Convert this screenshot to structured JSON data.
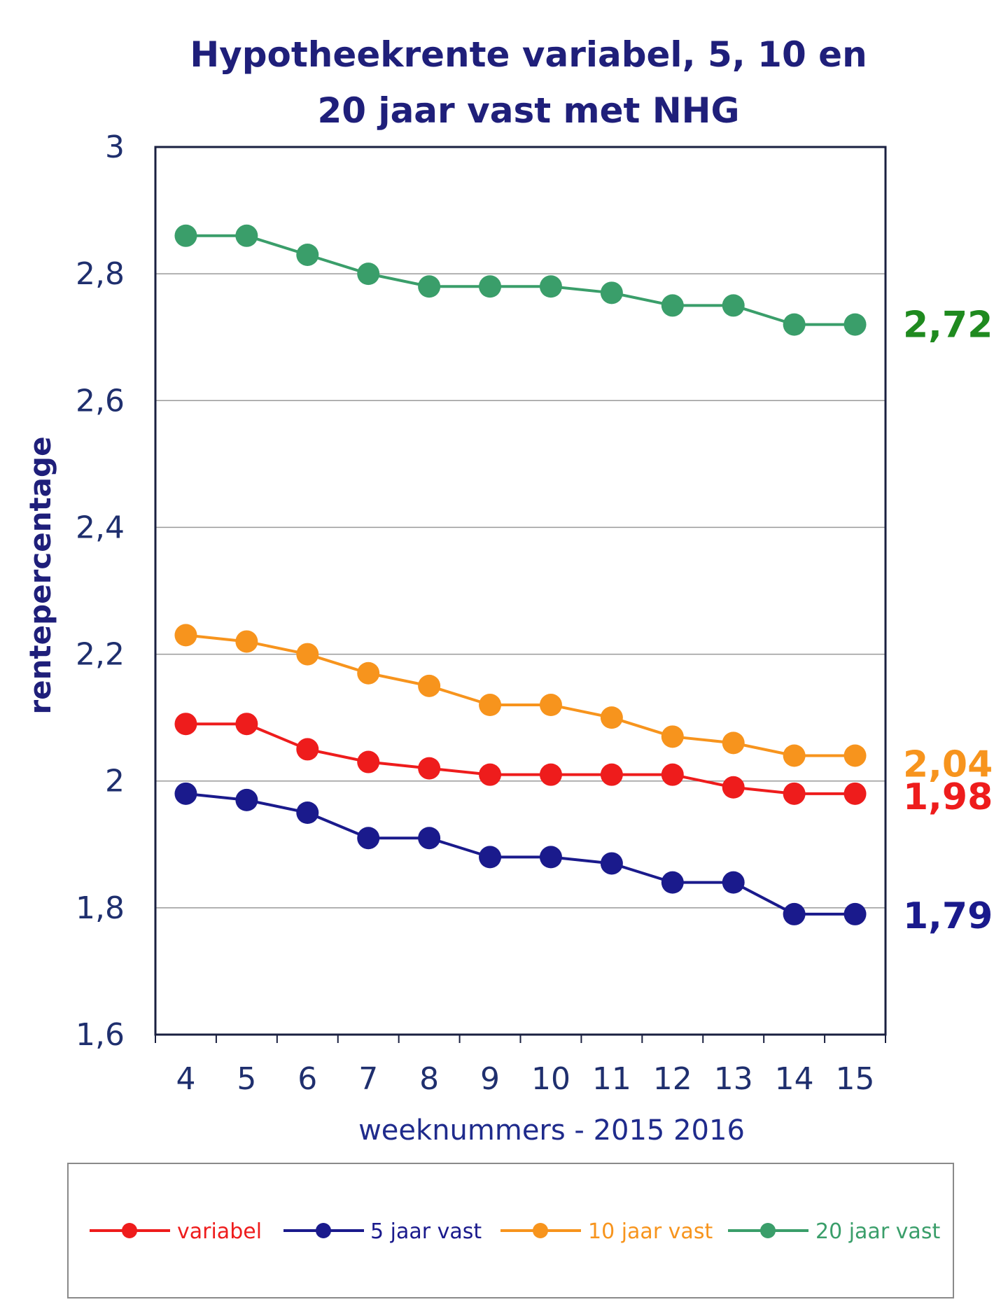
{
  "chart_data": {
    "type": "line",
    "title": [
      "Hypotheekrente variabel, 5, 10 en",
      "20 jaar vast met NHG"
    ],
    "xlabel": "weeknummers - 2015 2016",
    "ylabel": "rentepercentage",
    "ylim": [
      1.6,
      3
    ],
    "yticks": [
      "1,6",
      "1,8",
      "2",
      "2,2",
      "2,4",
      "2,6",
      "2,8",
      "3"
    ],
    "ytick_values": [
      1.6,
      1.8,
      2.0,
      2.2,
      2.4,
      2.6,
      2.8,
      3.0
    ],
    "categories": [
      "4",
      "5",
      "6",
      "7",
      "8",
      "9",
      "10",
      "11",
      "12",
      "13",
      "14",
      "15"
    ],
    "grid": true,
    "legend_position": "bottom",
    "series": [
      {
        "name": "variabel",
        "color": "#ee1c1c",
        "values": [
          2.09,
          2.09,
          2.05,
          2.03,
          2.02,
          2.01,
          2.01,
          2.01,
          2.01,
          1.99,
          1.98,
          1.98
        ],
        "end_label": "1,98",
        "end_label_color": "#ee1c1c"
      },
      {
        "name": "5 jaar vast",
        "color": "#1a1a8c",
        "values": [
          1.98,
          1.97,
          1.95,
          1.91,
          1.91,
          1.88,
          1.88,
          1.87,
          1.84,
          1.84,
          1.79,
          1.79
        ],
        "end_label": "1,79",
        "end_label_color": "#1a1a8c"
      },
      {
        "name": "10 jaar vast",
        "color": "#f7941d",
        "values": [
          2.23,
          2.22,
          2.2,
          2.17,
          2.15,
          2.12,
          2.12,
          2.1,
          2.07,
          2.06,
          2.04,
          2.04
        ],
        "end_label": "2,04",
        "end_label_color": "#f7941d"
      },
      {
        "name": "20 jaar vast",
        "color": "#3a9e6a",
        "values": [
          2.86,
          2.86,
          2.83,
          2.8,
          2.78,
          2.78,
          2.78,
          2.77,
          2.75,
          2.75,
          2.72,
          2.72
        ],
        "end_label": "2,72",
        "end_label_color": "#1f8a1f"
      }
    ]
  }
}
